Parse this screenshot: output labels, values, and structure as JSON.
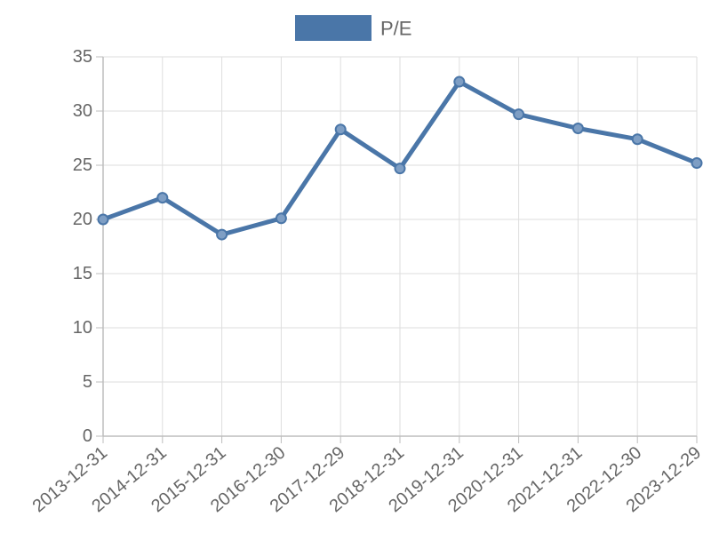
{
  "chart_data": {
    "type": "line",
    "title": "",
    "xlabel": "",
    "ylabel": "",
    "categories": [
      "2013-12-31",
      "2014-12-31",
      "2015-12-31",
      "2016-12-30",
      "2017-12-29",
      "2018-12-31",
      "2019-12-31",
      "2020-12-31",
      "2021-12-31",
      "2022-12-30",
      "2023-12-29"
    ],
    "series": [
      {
        "name": "P/E",
        "values": [
          20.0,
          22.0,
          18.6,
          20.1,
          28.3,
          24.7,
          32.7,
          29.7,
          28.4,
          27.4,
          25.2
        ],
        "color": "#4a76a8",
        "point_fill": "#7e9ec4"
      }
    ],
    "ylim": [
      0,
      35
    ],
    "yticks": [
      0,
      5,
      10,
      15,
      20,
      25,
      30,
      35
    ],
    "grid": true,
    "legend_position": "top-center"
  }
}
